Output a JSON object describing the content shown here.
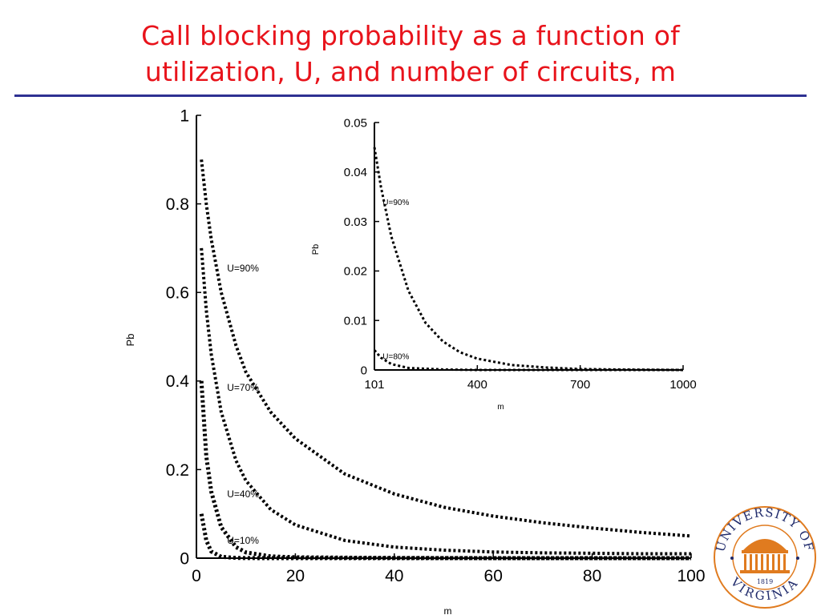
{
  "slide": {
    "title_line1": "Call blocking probability as a function of",
    "title_line2": "utilization, U, and number of circuits, m"
  },
  "colors": {
    "title": "#e8131b",
    "rule": "#2e3192",
    "plot": "#000000",
    "seal": "#e07b1f"
  },
  "logo": {
    "text_top": "UNIVERSITY OF",
    "text_bottom": "VIRGINIA",
    "year": "1819"
  },
  "chart_data": [
    {
      "type": "line",
      "style": "dotted",
      "xlabel": "m",
      "ylabel": "Pb",
      "xlim": [
        0,
        100
      ],
      "ylim": [
        0,
        1
      ],
      "xticks": [
        "0",
        "20",
        "40",
        "60",
        "80",
        "100"
      ],
      "yticks": [
        "0",
        "0.2",
        "0.4",
        "0.6",
        "0.8",
        "1"
      ],
      "series": [
        {
          "name": "U=90%",
          "x": [
            1,
            2,
            3,
            5,
            8,
            10,
            15,
            20,
            30,
            40,
            50,
            60,
            70,
            80,
            90,
            100
          ],
          "y": [
            0.9,
            0.8,
            0.72,
            0.6,
            0.48,
            0.42,
            0.33,
            0.27,
            0.19,
            0.145,
            0.115,
            0.095,
            0.08,
            0.068,
            0.058,
            0.05
          ]
        },
        {
          "name": "U=70%",
          "x": [
            1,
            2,
            3,
            5,
            8,
            10,
            15,
            20,
            30,
            40,
            50,
            60,
            70,
            80,
            90,
            100
          ],
          "y": [
            0.7,
            0.56,
            0.46,
            0.33,
            0.22,
            0.175,
            0.11,
            0.075,
            0.04,
            0.025,
            0.018,
            0.014,
            0.012,
            0.011,
            0.01,
            0.01
          ]
        },
        {
          "name": "U=40%",
          "x": [
            1,
            2,
            3,
            5,
            8,
            10,
            15,
            20,
            30,
            40,
            60,
            80,
            100
          ],
          "y": [
            0.4,
            0.23,
            0.15,
            0.07,
            0.025,
            0.013,
            0.004,
            0.002,
            0.001,
            0.0005,
            0,
            0,
            0
          ]
        },
        {
          "name": "U=10%",
          "x": [
            1,
            2,
            3,
            5,
            8,
            10,
            15,
            20,
            40,
            60,
            80,
            100
          ],
          "y": [
            0.1,
            0.04,
            0.015,
            0.003,
            0.0005,
            0.0002,
            0,
            0,
            0,
            0,
            0,
            0
          ]
        }
      ],
      "labels": [
        {
          "text": "U=90%",
          "series": "U=90%",
          "x": 6.2,
          "y": 0.655
        },
        {
          "text": "U=70%",
          "series": "U=70%",
          "x": 6.2,
          "y": 0.385
        },
        {
          "text": "U=40%",
          "series": "U=40%",
          "x": 6.2,
          "y": 0.145
        },
        {
          "text": "U=10%",
          "series": "U=10%",
          "x": 6.2,
          "y": 0.04
        }
      ]
    },
    {
      "type": "line",
      "style": "dotted",
      "xlabel": "m",
      "ylabel": "Pb",
      "xlim": [
        101,
        1000
      ],
      "ylim": [
        0,
        0.05
      ],
      "xticks": [
        "101",
        "400",
        "700",
        "1000"
      ],
      "yticks": [
        "0",
        "0.01",
        "0.02",
        "0.03",
        "0.04",
        "0.05"
      ],
      "series": [
        {
          "name": "U=90%",
          "x": [
            101,
            120,
            150,
            200,
            250,
            300,
            350,
            400,
            500,
            600,
            700,
            800,
            1000
          ],
          "y": [
            0.045,
            0.037,
            0.027,
            0.016,
            0.0095,
            0.0058,
            0.0036,
            0.0023,
            0.001,
            0.0005,
            0.0002,
            0.0001,
            0
          ]
        },
        {
          "name": "U=80%",
          "x": [
            101,
            120,
            150,
            200,
            300,
            400,
            700,
            1000
          ],
          "y": [
            0.004,
            0.0025,
            0.0012,
            0.0004,
            0.0001,
            0,
            0,
            0
          ]
        }
      ],
      "labels": [
        {
          "text": "U=90%",
          "series": "U=90%",
          "x": 125,
          "y": 0.034
        },
        {
          "text": "U=80%",
          "series": "U=80%",
          "x": 125,
          "y": 0.0028
        }
      ]
    }
  ]
}
